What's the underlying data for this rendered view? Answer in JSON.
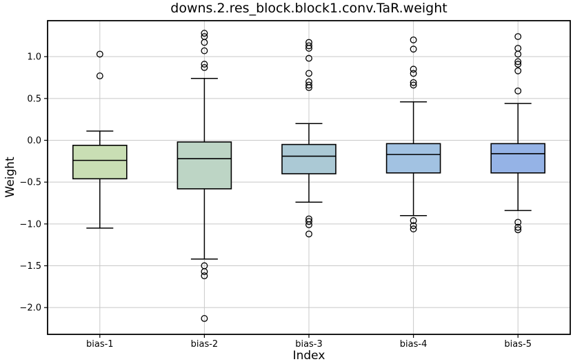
{
  "chart_data": {
    "type": "boxplot",
    "title": "downs.2.res_block.block1.conv.TaR.weight",
    "xlabel": "Index",
    "ylabel": "Weight",
    "categories": [
      "bias-1",
      "bias-2",
      "bias-3",
      "bias-4",
      "bias-5"
    ],
    "yticks": [
      1.0,
      0.5,
      0.0,
      -0.5,
      -1.0,
      -1.5,
      -2.0
    ],
    "ylim": [
      -2.32,
      1.43
    ],
    "grid": true,
    "grid_color": "#c8c8c8",
    "background": "#ffffff",
    "box_edge_color": "#000000",
    "series": [
      {
        "name": "bias-1",
        "whislo": -1.05,
        "q1": -0.46,
        "med": -0.24,
        "q3": -0.06,
        "whishi": 0.11,
        "fliers": [
          1.03,
          0.77
        ],
        "color": "#c9deb4"
      },
      {
        "name": "bias-2",
        "whislo": -1.42,
        "q1": -0.58,
        "med": -0.22,
        "q3": -0.02,
        "whishi": 0.74,
        "fliers": [
          1.28,
          1.24,
          1.17,
          1.07,
          0.91,
          0.87,
          -1.5,
          -1.57,
          -1.62,
          -2.13
        ],
        "color": "#bdd5c5"
      },
      {
        "name": "bias-3",
        "whislo": -0.74,
        "q1": -0.4,
        "med": -0.19,
        "q3": -0.05,
        "whishi": 0.2,
        "fliers": [
          1.17,
          1.13,
          1.1,
          0.98,
          0.8,
          0.7,
          0.66,
          0.63,
          -0.94,
          -0.97,
          -1.01,
          -1.12
        ],
        "color": "#abc9d5"
      },
      {
        "name": "bias-4",
        "whislo": -0.9,
        "q1": -0.39,
        "med": -0.17,
        "q3": -0.04,
        "whishi": 0.46,
        "fliers": [
          1.2,
          1.09,
          0.85,
          0.8,
          0.69,
          0.66,
          -0.96,
          -1.02,
          -1.06
        ],
        "color": "#a2c2e2"
      },
      {
        "name": "bias-5",
        "whislo": -0.84,
        "q1": -0.39,
        "med": -0.16,
        "q3": -0.04,
        "whishi": 0.44,
        "fliers": [
          1.24,
          1.1,
          1.03,
          0.94,
          0.91,
          0.83,
          0.59,
          -0.98,
          -1.04,
          -1.07
        ],
        "color": "#95b3e6"
      }
    ]
  }
}
